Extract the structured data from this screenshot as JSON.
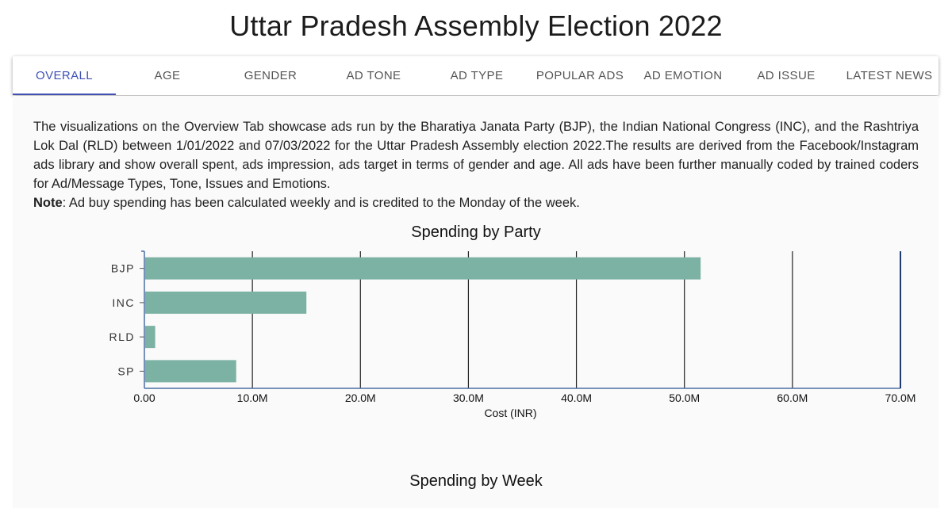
{
  "page": {
    "title": "Uttar Pradesh Assembly Election 2022"
  },
  "tabs": [
    {
      "label": "OVERALL",
      "active": true
    },
    {
      "label": "AGE",
      "active": false
    },
    {
      "label": "GENDER",
      "active": false
    },
    {
      "label": "AD TONE",
      "active": false
    },
    {
      "label": "AD TYPE",
      "active": false
    },
    {
      "label": "POPULAR ADS",
      "active": false
    },
    {
      "label": "AD EMOTION",
      "active": false
    },
    {
      "label": "AD ISSUE",
      "active": false
    },
    {
      "label": "LATEST NEWS",
      "active": false
    }
  ],
  "intro": {
    "text": "The visualizations on the Overview Tab showcase ads run by the Bharatiya Janata Party (BJP), the Indian National Congress (INC), and the Rashtriya Lok Dal (RLD) between 1/01/2022 and 07/03/2022 for the Uttar Pradesh Assembly election 2022.The results are derived from the Facebook/Instagram ads library and show overall spent, ads impression, ads target in terms of gender and age. All ads have been further manually coded by trained coders for Ad/Message Types, Tone, Issues and Emotions.",
    "note_label": "Note",
    "note_text": ": Ad buy spending has been calculated weekly and is credited to the Monday of the week."
  },
  "colors": {
    "accent": "#3f51b5",
    "bar": "#7cb2a3",
    "axis": "#4a6fa5"
  },
  "chart_data": [
    {
      "type": "bar",
      "orientation": "horizontal",
      "title": "Spending by Party",
      "categories": [
        "BJP",
        "INC",
        "RLD",
        "SP"
      ],
      "values": [
        51500000,
        15000000,
        1000000,
        8500000
      ],
      "xlabel": "Cost (INR)",
      "ylabel": "",
      "xlim": [
        0,
        70000000
      ],
      "xticks": [
        0,
        10000000,
        20000000,
        30000000,
        40000000,
        50000000,
        60000000,
        70000000
      ],
      "xtick_labels": [
        "0.00",
        "10.0M",
        "20.0M",
        "30.0M",
        "40.0M",
        "50.0M",
        "60.0M",
        "70.0M"
      ],
      "grid": "vertical"
    },
    {
      "type": "line",
      "title": "Spending by Week"
    }
  ]
}
